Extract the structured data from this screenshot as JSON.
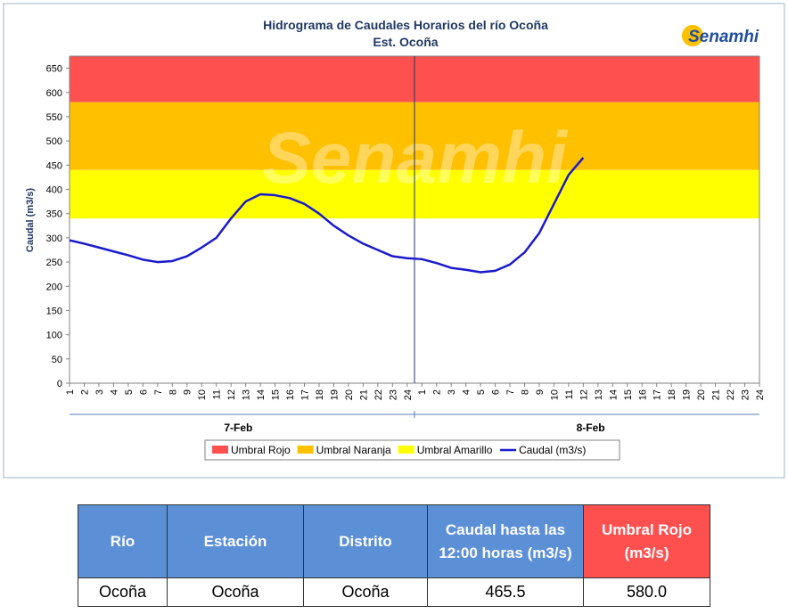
{
  "chart_data": {
    "type": "line",
    "title": "Hidrograma de Caudales Horarios del río Ocoña",
    "subtitle": "Est. Ocoña",
    "y_label": "Caudal  (m3/s)",
    "logo": "Senamhi",
    "categories": [
      "1",
      "2",
      "3",
      "4",
      "5",
      "6",
      "7",
      "8",
      "9",
      "10",
      "11",
      "12",
      "13",
      "14",
      "15",
      "16",
      "17",
      "18",
      "19",
      "20",
      "21",
      "22",
      "23",
      "24",
      "1",
      "2",
      "3",
      "4",
      "5",
      "6",
      "7",
      "8",
      "9",
      "10",
      "11",
      "12",
      "13",
      "14",
      "15",
      "16",
      "17",
      "18",
      "19",
      "20",
      "21",
      "22",
      "23",
      "24"
    ],
    "x_groups": [
      "7-Feb",
      "8-Feb"
    ],
    "thresholds": [
      {
        "name": "Umbral Rojo",
        "color": "#ff5050",
        "range": [
          580,
          675
        ]
      },
      {
        "name": "Umbral Naranja",
        "color": "#ffc000",
        "range": [
          440,
          580
        ]
      },
      {
        "name": "Umbral Amarillo",
        "color": "#ffff00",
        "range": [
          340,
          440
        ]
      }
    ],
    "series": [
      {
        "name": "Caudal (m3/s)",
        "color": "#1a1acd",
        "values": [
          295,
          288,
          280,
          272,
          264,
          255,
          250,
          252,
          262,
          280,
          300,
          340,
          375,
          390,
          388,
          382,
          370,
          350,
          325,
          305,
          288,
          275,
          262,
          258,
          256,
          248,
          238,
          234,
          229,
          232,
          245,
          270,
          310,
          370,
          430,
          465.5,
          null,
          null,
          null,
          null,
          null,
          null,
          null,
          null,
          null,
          null,
          null,
          null
        ]
      }
    ],
    "ylim": [
      0,
      675
    ],
    "yticks": [
      0,
      50,
      100,
      150,
      200,
      250,
      300,
      350,
      400,
      450,
      500,
      550,
      600,
      650
    ],
    "grid": false
  },
  "table": {
    "header": [
      "Río",
      "Estación",
      "Distrito",
      "Caudal hasta las 12:00 horas (m3/s)",
      "Umbral  Rojo (m3/s)"
    ],
    "rows": [
      [
        "Ocoña",
        "Ocoña",
        "Ocoña",
        "465.5",
        "580.0"
      ]
    ]
  }
}
